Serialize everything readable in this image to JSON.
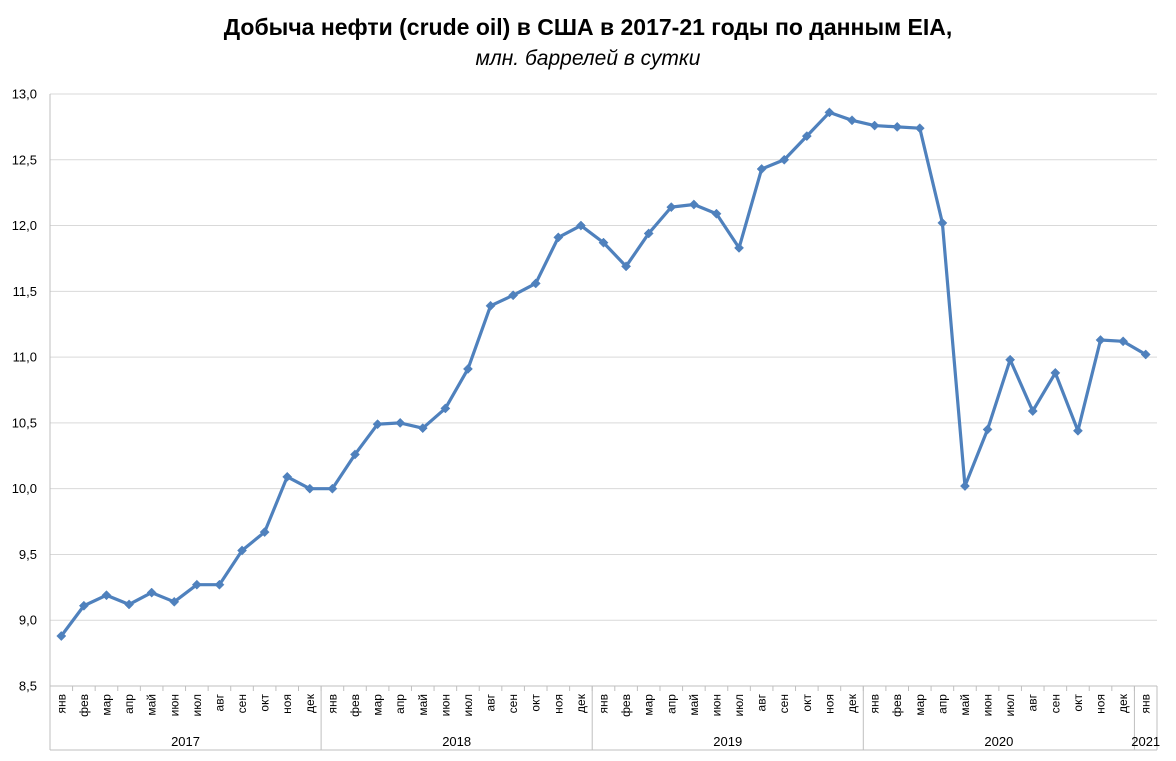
{
  "chart_data": {
    "type": "line",
    "title": "Добыча нефти (crude oil) в США в 2017-21 годы по данным EIA,",
    "subtitle": "млн. баррелей в сутки",
    "xlabel": "",
    "ylabel": "",
    "ylim": [
      8.5,
      13.0
    ],
    "yticks": [
      "8,5",
      "9,0",
      "9,5",
      "10,0",
      "10,5",
      "11,0",
      "11,5",
      "12,0",
      "12,5",
      "13,0"
    ],
    "grid": true,
    "legend": "none",
    "line_color": "#4F81BD",
    "years": [
      {
        "label": "2017",
        "months": 12
      },
      {
        "label": "2018",
        "months": 12
      },
      {
        "label": "2019",
        "months": 12
      },
      {
        "label": "2020",
        "months": 12
      },
      {
        "label": "2021",
        "months": 1
      }
    ],
    "categories": [
      "янв",
      "фев",
      "мар",
      "апр",
      "май",
      "июн",
      "июл",
      "авг",
      "сен",
      "окт",
      "ноя",
      "дек",
      "янв",
      "фев",
      "мар",
      "апр",
      "май",
      "июн",
      "июл",
      "авг",
      "сен",
      "окт",
      "ноя",
      "дек",
      "янв",
      "фев",
      "мар",
      "апр",
      "май",
      "июн",
      "июл",
      "авг",
      "сен",
      "окт",
      "ноя",
      "дек",
      "янв",
      "фев",
      "мар",
      "апр",
      "май",
      "июн",
      "июл",
      "авг",
      "сен",
      "окт",
      "ноя",
      "дек",
      "янв"
    ],
    "series": [
      {
        "values": [
          8.88,
          9.11,
          9.19,
          9.12,
          9.21,
          9.14,
          9.27,
          9.27,
          9.53,
          9.67,
          10.09,
          10.0,
          10.0,
          10.26,
          10.49,
          10.5,
          10.46,
          10.61,
          10.91,
          11.39,
          11.47,
          11.56,
          11.91,
          12.0,
          11.87,
          11.69,
          11.94,
          12.14,
          12.16,
          12.09,
          11.83,
          12.43,
          12.5,
          12.68,
          12.86,
          12.8,
          12.76,
          12.75,
          12.74,
          12.02,
          10.02,
          10.45,
          10.98,
          10.59,
          10.88,
          10.44,
          11.13,
          11.12,
          11.02
        ]
      }
    ]
  }
}
